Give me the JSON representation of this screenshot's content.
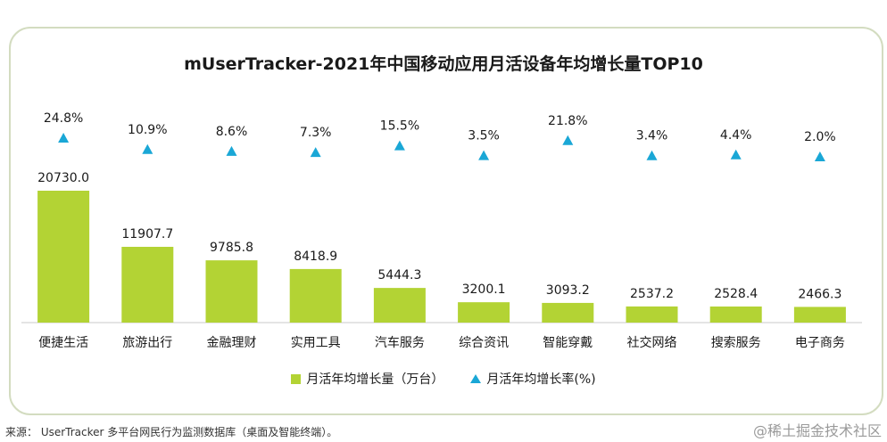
{
  "title": "mUserTracker-2021年中国移动应用月活设备年均增长量TOP10",
  "source": "来源： UserTracker 多平台网民行为监测数据库（桌面及智能终端）。",
  "watermark": "@稀土掘金技术社区",
  "colors": {
    "bar": "#b3d334",
    "marker": "#1aa7d6",
    "card_border": "#d3dcc0"
  },
  "legend": [
    {
      "label": "月活年均增长量（万台）",
      "shape": "square",
      "color": "#b3d334"
    },
    {
      "label": "月活年均增长率(%)",
      "shape": "triangle",
      "color": "#1aa7d6"
    }
  ],
  "chart_data": {
    "type": "bar",
    "categories": [
      "便捷生活",
      "旅游出行",
      "金融理财",
      "实用工具",
      "汽车服务",
      "综合资讯",
      "智能穿戴",
      "社交网络",
      "搜索服务",
      "电子商务"
    ],
    "series": [
      {
        "name": "月活年均增长量（万台）",
        "type": "bar",
        "values": [
          20730.0,
          11907.7,
          9785.8,
          8418.9,
          5444.3,
          3200.1,
          3093.2,
          2537.2,
          2528.4,
          2466.3
        ],
        "labels": [
          "20730.0",
          "11907.7",
          "9785.8",
          "8418.9",
          "5444.3",
          "3200.1",
          "3093.2",
          "2537.2",
          "2528.4",
          "2466.3"
        ]
      },
      {
        "name": "月活年均增长率(%)",
        "type": "scatter",
        "marker": "triangle",
        "values": [
          24.8,
          10.9,
          8.6,
          7.3,
          15.5,
          3.5,
          21.8,
          3.4,
          4.4,
          2.0
        ],
        "labels": [
          "24.8%",
          "10.9%",
          "8.6%",
          "7.3%",
          "15.5%",
          "3.5%",
          "21.8%",
          "3.4%",
          "4.4%",
          "2.0%"
        ]
      }
    ],
    "axes": "hidden",
    "grid": false,
    "legend_position": "bottom"
  }
}
